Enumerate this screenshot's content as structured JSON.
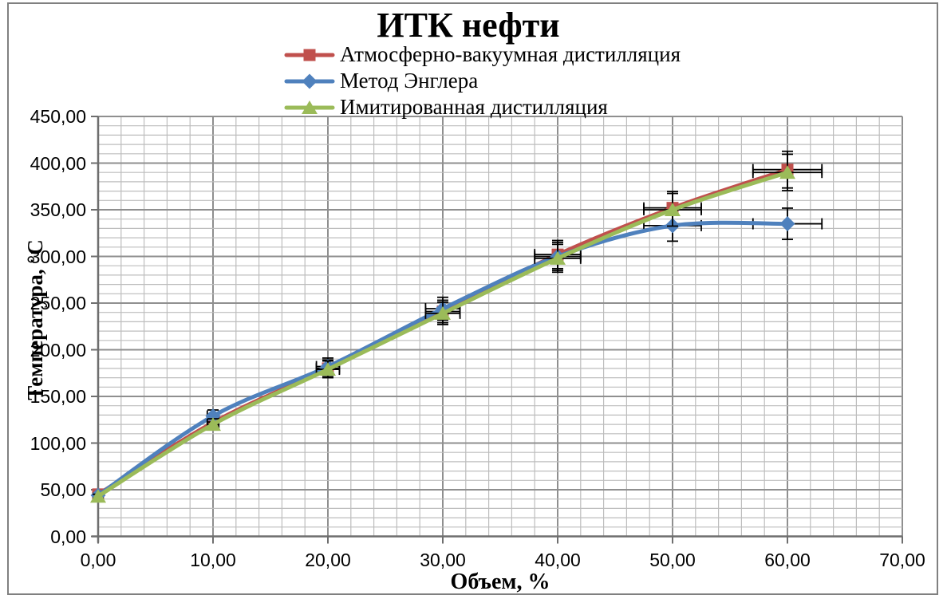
{
  "chart_data": {
    "type": "line",
    "title": "ИТК нефти",
    "xlabel": "Объем, %",
    "ylabel": "Температура, °C",
    "xlim": [
      0,
      70
    ],
    "ylim": [
      0,
      450
    ],
    "x_major_step": 10,
    "x_minor_step": 2,
    "y_major_step": 50,
    "y_minor_step": 10,
    "grid": "both-major-and-minor",
    "legend_position": "top-left-under-title",
    "error_bars_pct": 5,
    "x": [
      0,
      10,
      20,
      30,
      40,
      50,
      60
    ],
    "series": [
      {
        "name": "Атмосферно-вакуумная дистилляция",
        "color": "#C0504D",
        "marker": "square",
        "values": [
          45,
          122,
          180,
          241,
          302,
          352,
          393
        ]
      },
      {
        "name": "Метод Энглера",
        "color": "#4F81BD",
        "marker": "diamond",
        "values": [
          44,
          129,
          182,
          244,
          300,
          333,
          335
        ]
      },
      {
        "name": "Имитированная дистилляция",
        "color": "#9BBB59",
        "marker": "triangle",
        "values": [
          43,
          120,
          179,
          239,
          298,
          350,
          390
        ]
      }
    ],
    "x_tick_labels": [
      "0,00",
      "10,00",
      "20,00",
      "30,00",
      "40,00",
      "50,00",
      "60,00",
      "70,00"
    ],
    "y_tick_labels": [
      "450,00",
      "400,00",
      "350,00",
      "300,00",
      "250,00",
      "200,00",
      "150,00",
      "100,00",
      "50,00",
      "0,00"
    ]
  },
  "colors": {
    "frame_border": "#808080",
    "axis_line": "#6e6e6e",
    "major_grid": "#8f8f8f",
    "minor_grid": "#bdbdbd",
    "error_bar": "#000000",
    "background": "#ffffff"
  }
}
